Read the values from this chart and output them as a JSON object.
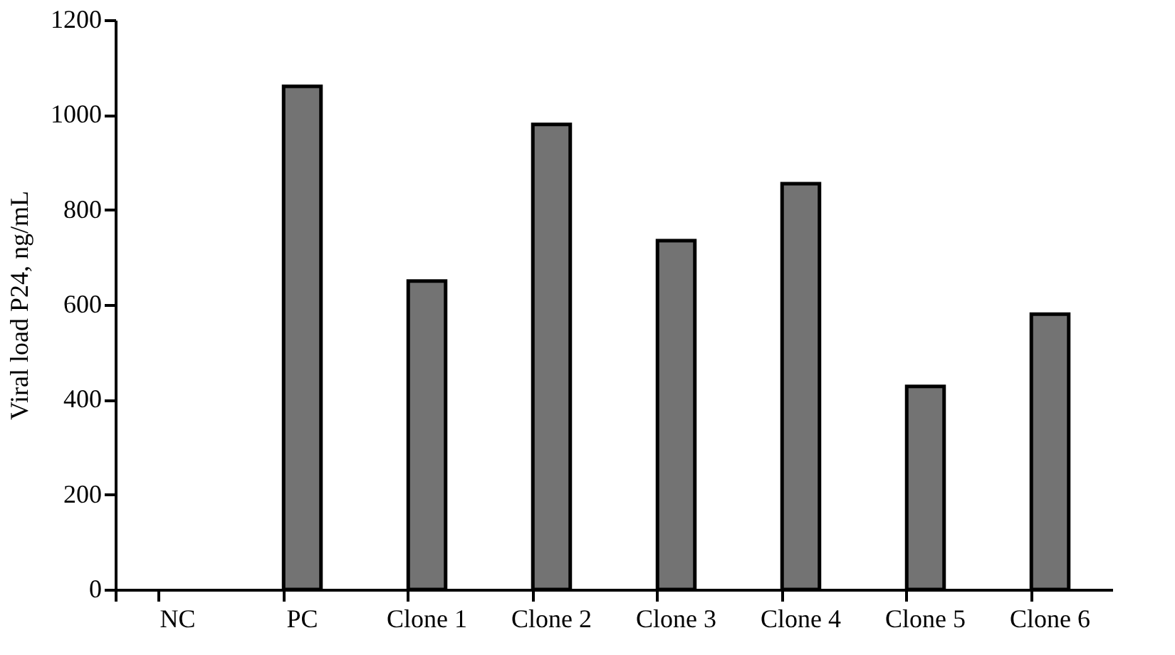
{
  "chart_data": {
    "type": "bar",
    "ylabel": "Viral load P24, ng/mL",
    "categories": [
      "NC",
      "PC",
      "Clone 1",
      "Clone 2",
      "Clone 3",
      "Clone 4",
      "Clone 5",
      "Clone 6"
    ],
    "values": [
      0,
      1060,
      650,
      980,
      735,
      855,
      428,
      580
    ],
    "color": "#737373",
    "ylim": [
      0,
      1200
    ],
    "yticks": [
      0,
      200,
      400,
      600,
      800,
      1000,
      1200
    ],
    "grid": false
  }
}
